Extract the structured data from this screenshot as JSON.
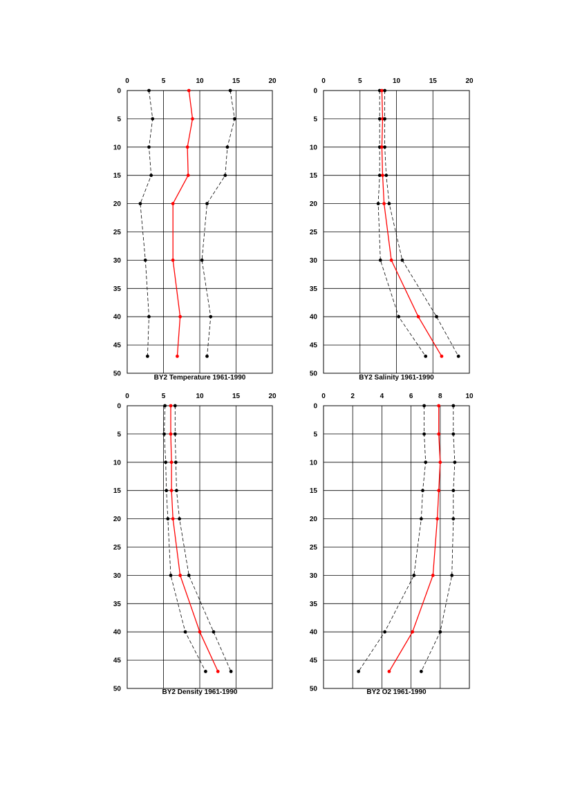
{
  "chart_data": [
    {
      "type": "line",
      "title": "BY2 Temperature 1961-1990",
      "xlim": [
        0,
        20
      ],
      "ylim": [
        0,
        50
      ],
      "x_ticks": [
        "0",
        "5",
        "10",
        "15",
        "20"
      ],
      "y_ticks": [
        "0",
        "5",
        "10",
        "15",
        "20",
        "25",
        "30",
        "35",
        "40",
        "45",
        "50"
      ],
      "grid": true,
      "y_axis_inverted": true,
      "depth": [
        0,
        5,
        10,
        15,
        20,
        30,
        40,
        47
      ],
      "series": [
        {
          "role": "min",
          "style": "dashed",
          "color": "#000000",
          "values": [
            3.0,
            3.5,
            3.0,
            3.3,
            1.8,
            2.5,
            3.0,
            2.8
          ]
        },
        {
          "role": "mean",
          "style": "solid",
          "color": "#ff0000",
          "values": [
            8.5,
            9.0,
            8.3,
            8.4,
            6.3,
            6.3,
            7.3,
            6.9
          ]
        },
        {
          "role": "max",
          "style": "dashed",
          "color": "#000000",
          "values": [
            14.2,
            14.8,
            13.8,
            13.5,
            11.0,
            10.3,
            11.5,
            11.0
          ]
        }
      ]
    },
    {
      "type": "line",
      "title": "BY2 Salinity 1961-1990",
      "xlim": [
        0,
        20
      ],
      "ylim": [
        0,
        50
      ],
      "x_ticks": [
        "0",
        "5",
        "10",
        "15",
        "20"
      ],
      "y_ticks": [
        "0",
        "5",
        "10",
        "15",
        "20",
        "25",
        "30",
        "35",
        "40",
        "45",
        "50"
      ],
      "grid": true,
      "y_axis_inverted": true,
      "depth": [
        0,
        5,
        10,
        15,
        20,
        30,
        40,
        47
      ],
      "series": [
        {
          "role": "min",
          "style": "dashed",
          "color": "#000000",
          "values": [
            7.7,
            7.7,
            7.7,
            7.7,
            7.5,
            7.8,
            10.3,
            14.0
          ]
        },
        {
          "role": "mean",
          "style": "solid",
          "color": "#ff0000",
          "values": [
            8.0,
            8.1,
            8.0,
            8.1,
            8.3,
            9.3,
            13.0,
            16.2
          ]
        },
        {
          "role": "max",
          "style": "dashed",
          "color": "#000000",
          "values": [
            8.4,
            8.4,
            8.4,
            8.6,
            9.0,
            10.8,
            15.5,
            18.5
          ]
        }
      ]
    },
    {
      "type": "line",
      "title": "BY2 Density 1961-1990",
      "xlim": [
        0,
        20
      ],
      "ylim": [
        0,
        50
      ],
      "x_ticks": [
        "0",
        "5",
        "10",
        "15",
        "20"
      ],
      "y_ticks": [
        "0",
        "5",
        "10",
        "15",
        "20",
        "25",
        "30",
        "35",
        "40",
        "45",
        "50"
      ],
      "grid": true,
      "y_axis_inverted": true,
      "depth": [
        0,
        5,
        10,
        15,
        20,
        30,
        40,
        47
      ],
      "series": [
        {
          "role": "min",
          "style": "dashed",
          "color": "#000000",
          "values": [
            5.2,
            5.1,
            5.3,
            5.4,
            5.6,
            6.0,
            8.0,
            10.8
          ]
        },
        {
          "role": "mean",
          "style": "solid",
          "color": "#ff0000",
          "values": [
            6.0,
            6.0,
            6.1,
            6.1,
            6.3,
            7.3,
            10.0,
            12.5
          ]
        },
        {
          "role": "max",
          "style": "dashed",
          "color": "#000000",
          "values": [
            6.6,
            6.6,
            6.7,
            6.8,
            7.2,
            8.5,
            11.9,
            14.3
          ]
        }
      ]
    },
    {
      "type": "line",
      "title": "BY2 O2 1961-1990",
      "xlim": [
        0,
        10
      ],
      "ylim": [
        0,
        50
      ],
      "x_ticks": [
        "0",
        "2",
        "4",
        "6",
        "8",
        "10"
      ],
      "y_ticks": [
        "0",
        "5",
        "10",
        "15",
        "20",
        "25",
        "30",
        "35",
        "40",
        "45",
        "50"
      ],
      "grid": true,
      "y_axis_inverted": true,
      "depth": [
        0,
        5,
        10,
        15,
        20,
        30,
        40,
        47
      ],
      "series": [
        {
          "role": "min",
          "style": "dashed",
          "color": "#000000",
          "values": [
            6.9,
            6.9,
            7.0,
            6.8,
            6.7,
            6.2,
            4.2,
            2.4
          ]
        },
        {
          "role": "mean",
          "style": "solid",
          "color": "#ff0000",
          "values": [
            7.9,
            7.9,
            8.0,
            7.9,
            7.8,
            7.5,
            6.1,
            4.5
          ]
        },
        {
          "role": "max",
          "style": "dashed",
          "color": "#000000",
          "values": [
            8.9,
            8.9,
            9.0,
            8.9,
            8.9,
            8.8,
            8.0,
            6.7
          ]
        }
      ]
    }
  ]
}
